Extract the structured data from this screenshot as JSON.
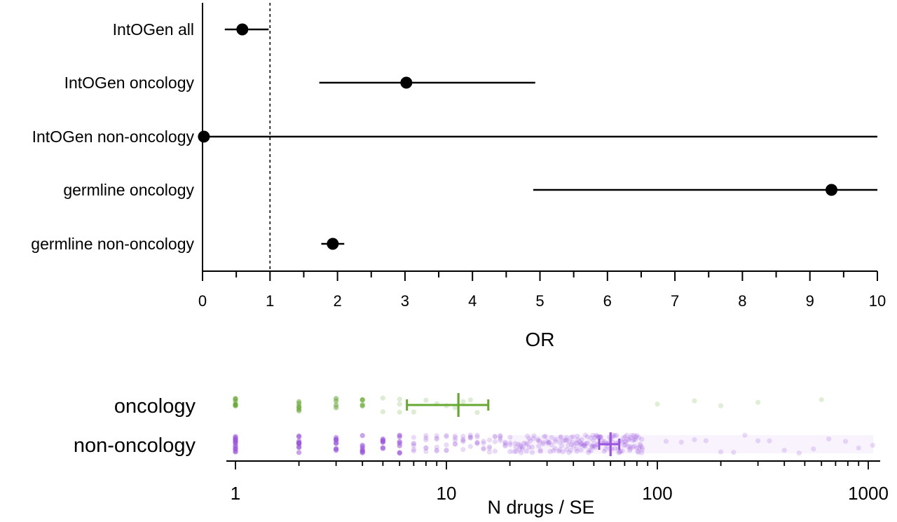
{
  "chart_data": [
    {
      "type": "forest",
      "xlabel": "OR",
      "xlim": [
        0,
        10
      ],
      "x_ticks": [
        0,
        1,
        2,
        3,
        4,
        5,
        6,
        7,
        8,
        9,
        10
      ],
      "reference_line": 1,
      "categories": [
        "IntOGen all",
        "IntOGen oncology",
        "IntOGen non-oncology",
        "germline oncology",
        "germline non-oncology"
      ],
      "estimates": [
        0.59,
        3.02,
        0.02,
        9.32,
        1.93
      ],
      "ci_low": [
        0.33,
        1.73,
        0.0,
        4.9,
        1.76
      ],
      "ci_high": [
        0.98,
        4.93,
        10.0,
        10.0,
        2.1
      ]
    },
    {
      "type": "scatter",
      "xlabel": "N drugs / SE",
      "xscale": "log",
      "xlim": [
        0.9,
        1100
      ],
      "x_ticks": [
        1,
        10,
        100,
        1000
      ],
      "x_tick_labels": [
        "1",
        "10",
        "100",
        "1000"
      ],
      "series": [
        {
          "name": "oncology",
          "color": "#66a832",
          "mean": 11.4,
          "error_low": 6.5,
          "error_high": 15.8
        },
        {
          "name": "non-oncology",
          "color": "#9a55e0",
          "mean": 60,
          "error_low": 53,
          "error_high": 66
        }
      ]
    }
  ]
}
